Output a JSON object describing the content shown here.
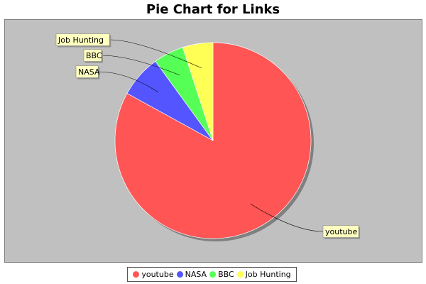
{
  "chart_data": {
    "type": "pie",
    "title": "Pie Chart for Links",
    "slices": [
      {
        "label": "youtube",
        "value": 83,
        "color": "#ff5555"
      },
      {
        "label": "NASA",
        "value": 7,
        "color": "#5555ff"
      },
      {
        "label": "BBC",
        "value": 5,
        "color": "#55ff55"
      },
      {
        "label": "Job Hunting",
        "value": 5,
        "color": "#ffff55"
      }
    ],
    "legend_position": "bottom",
    "plot_background": "#c0c0c0"
  }
}
